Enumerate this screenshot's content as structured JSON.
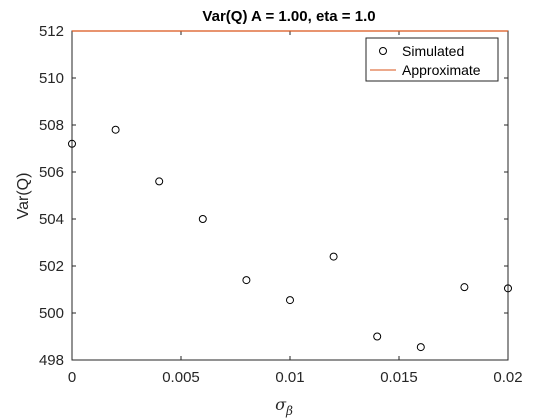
{
  "chart_data": {
    "type": "scatter",
    "title": "Var(Q) A = 1.00, eta = 1.0",
    "xlabel_symbol": "σ",
    "xlabel_subscript": "β",
    "ylabel": "Var(Q)",
    "xlim": [
      0,
      0.02
    ],
    "ylim": [
      498,
      512
    ],
    "x_ticks": [
      0,
      0.005,
      0.01,
      0.015,
      0.02
    ],
    "x_tick_labels": [
      "0",
      "0.005",
      "0.01",
      "0.015",
      "0.02"
    ],
    "y_ticks": [
      498,
      500,
      502,
      504,
      506,
      508,
      510,
      512
    ],
    "y_tick_labels": [
      "498",
      "500",
      "502",
      "504",
      "506",
      "508",
      "510",
      "512"
    ],
    "grid": false,
    "legend_position": "top-right",
    "series": [
      {
        "name": "Simulated",
        "marker": "open-circle",
        "color": "#000000",
        "x": [
          0,
          0.002,
          0.004,
          0.006,
          0.008,
          0.01,
          0.012,
          0.014,
          0.016,
          0.018,
          0.02
        ],
        "y": [
          507.2,
          507.8,
          505.6,
          504.0,
          501.4,
          500.55,
          502.4,
          499.0,
          498.55,
          501.1,
          501.05
        ]
      },
      {
        "name": "Approximate",
        "marker": "line",
        "color": "#D95319",
        "x": [
          0,
          0.02
        ],
        "y": [
          512,
          512
        ]
      }
    ]
  }
}
